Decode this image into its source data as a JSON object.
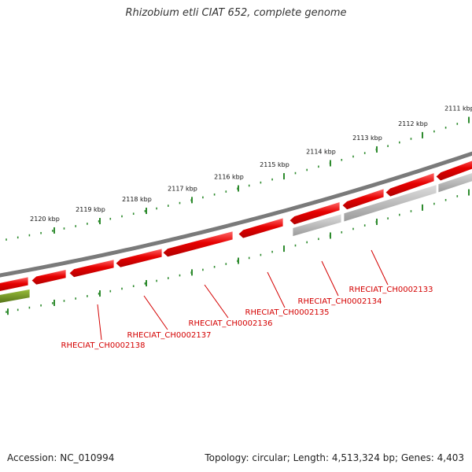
{
  "title": "Rhizobium etli CIAT 652, complete genome",
  "footer": {
    "accession": "Accession: NC_010994",
    "summary": "Topology: circular; Length: 4,513,324 bp; Genes: 4,403"
  },
  "colors": {
    "backbone": "#7a7a7a",
    "gene_forward": "#e60000",
    "gene_reverse_gray": "#b8b8b8",
    "gene_olive": "#6b8e23",
    "tick": "#2e8b2e",
    "label": "#d40000"
  },
  "kbp_ticks": [
    "2111 kbp",
    "2112 kbp",
    "2113 kbp",
    "2114 kbp",
    "2115 kbp",
    "2116 kbp",
    "2117 kbp",
    "2118 kbp",
    "2119 kbp",
    "2120 kbp"
  ],
  "genes": [
    {
      "label": "RHECIAT_CH0002133"
    },
    {
      "label": "RHECIAT_CH0002134"
    },
    {
      "label": "RHECIAT_CH0002135"
    },
    {
      "label": "RHECIAT_CH0002136"
    },
    {
      "label": "RHECIAT_CH0002137"
    },
    {
      "label": "RHECIAT_CH0002138"
    }
  ]
}
